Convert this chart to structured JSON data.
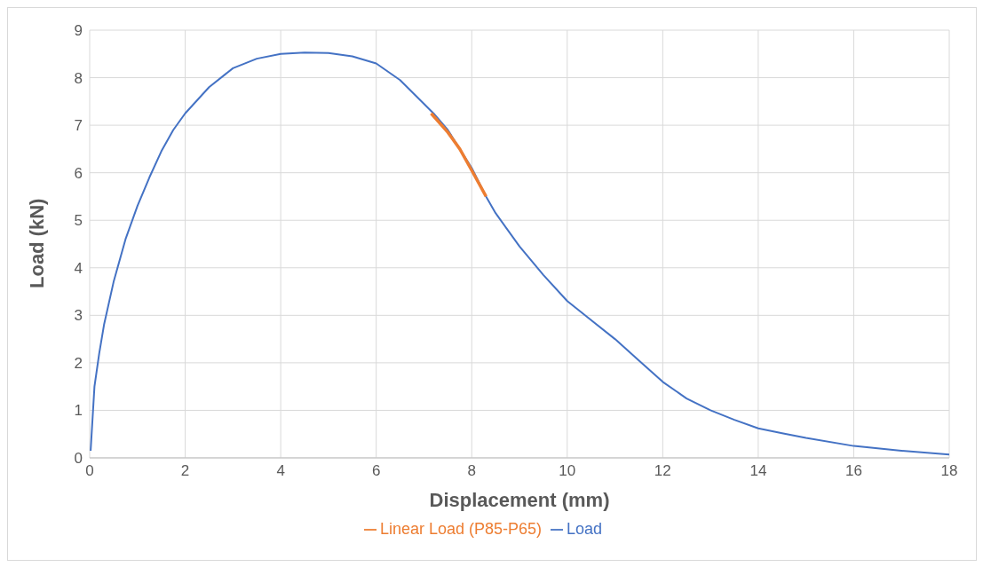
{
  "chart_data": {
    "type": "line",
    "xlabel": "Displacement (mm)",
    "ylabel": "Load (kN)",
    "xlim": [
      0,
      18
    ],
    "xticks": [
      0,
      2,
      4,
      6,
      8,
      10,
      12,
      14,
      16,
      18
    ],
    "ylim": [
      0,
      9
    ],
    "yticks": [
      0,
      1,
      2,
      3,
      4,
      5,
      6,
      7,
      8,
      9
    ],
    "grid": true,
    "legend": "bottom",
    "marker": "none",
    "line_style": "solid",
    "series": [
      {
        "name": "Load",
        "color": "#4472c4",
        "x": [
          0.02,
          0.1,
          0.2,
          0.3,
          0.5,
          0.75,
          1.0,
          1.25,
          1.5,
          1.75,
          2.0,
          2.5,
          3.0,
          3.5,
          4.0,
          4.5,
          5.0,
          5.5,
          6.0,
          6.5,
          7.0,
          7.2,
          7.5,
          8.0,
          8.3,
          8.5,
          9.0,
          9.5,
          10.0,
          10.5,
          11.0,
          11.5,
          12.0,
          12.5,
          13.0,
          13.5,
          14.0,
          14.5,
          15.0,
          16.0,
          17.0,
          18.0
        ],
        "values": [
          0.15,
          1.5,
          2.2,
          2.8,
          3.7,
          4.6,
          5.3,
          5.9,
          6.45,
          6.9,
          7.25,
          7.8,
          8.2,
          8.4,
          8.5,
          8.53,
          8.52,
          8.45,
          8.3,
          7.95,
          7.45,
          7.25,
          6.9,
          6.1,
          5.5,
          5.15,
          4.45,
          3.85,
          3.3,
          2.9,
          2.5,
          2.05,
          1.6,
          1.25,
          1.0,
          0.8,
          0.62,
          0.52,
          0.42,
          0.25,
          0.15,
          0.07
        ]
      },
      {
        "name": "Linear Load (P85-P65)",
        "color": "#ed7d31",
        "x": [
          7.15,
          7.5,
          7.75,
          8.0,
          8.3
        ],
        "values": [
          7.25,
          6.85,
          6.5,
          6.05,
          5.5
        ]
      }
    ]
  }
}
